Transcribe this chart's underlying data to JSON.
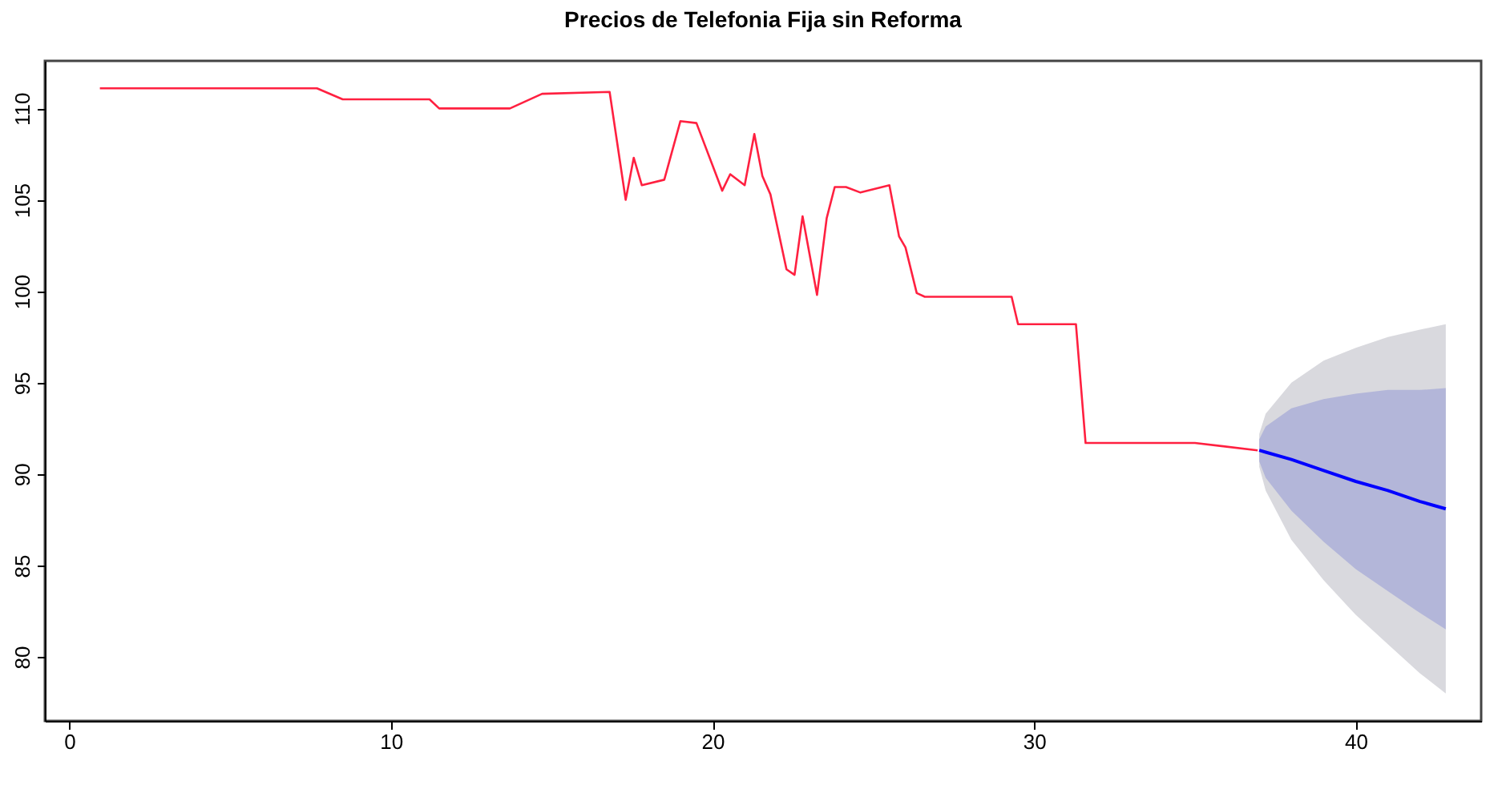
{
  "chart_data": {
    "type": "line",
    "title": "Precios de Telefonia Fija sin Reforma",
    "xlim": [
      -0.76,
      43.9
    ],
    "ylim": [
      76.5,
      112.6
    ],
    "xticks": [
      0,
      10,
      20,
      30,
      40
    ],
    "yticks": [
      80,
      85,
      90,
      95,
      100,
      105,
      110
    ],
    "grid": false,
    "line_style": "solid",
    "marker": "none",
    "series": [
      {
        "color": "#ff2040",
        "x": [
          0.95,
          7.7,
          8.5,
          11.2,
          11.5,
          13.7,
          14.7,
          16.8,
          17.3,
          17.55,
          17.8,
          18.5,
          19.0,
          19.5,
          20.3,
          20.55,
          21.0,
          21.3,
          21.55,
          21.8,
          22.3,
          22.55,
          22.8,
          23.25,
          23.55,
          23.8,
          24.15,
          24.6,
          25.5,
          25.8,
          26.0,
          26.35,
          26.6,
          29.3,
          29.5,
          31.3,
          31.6,
          35.0,
          36.95
        ],
        "values": [
          111.1,
          111.1,
          110.5,
          110.5,
          110.0,
          110.0,
          110.8,
          110.9,
          105.0,
          107.3,
          105.8,
          106.1,
          109.3,
          109.2,
          105.5,
          106.4,
          105.8,
          108.6,
          106.3,
          105.3,
          101.2,
          100.9,
          104.1,
          99.8,
          104.0,
          105.7,
          105.7,
          105.4,
          105.8,
          103.0,
          102.4,
          99.9,
          99.7,
          99.7,
          98.2,
          98.2,
          91.7,
          91.7,
          91.3
        ]
      },
      {
        "color": "#d9d9de",
        "x": [
          37.0,
          37.2,
          38,
          39,
          40,
          41,
          42,
          42.8
        ],
        "values": [
          null,
          null,
          null,
          null,
          null,
          null,
          null,
          null
        ],
        "lower": [
          90.4,
          89.1,
          86.4,
          84.2,
          82.3,
          80.7,
          79.1,
          78.0
        ],
        "upper": [
          92.2,
          93.3,
          95.0,
          96.2,
          96.9,
          97.5,
          97.9,
          98.2
        ]
      },
      {
        "color": "#b3b6d9",
        "x": [
          37.0,
          37.2,
          38,
          39,
          40,
          41,
          42,
          42.8
        ],
        "values": [
          null,
          null,
          null,
          null,
          null,
          null,
          null,
          null
        ],
        "lower": [
          90.7,
          89.8,
          88.0,
          86.3,
          84.8,
          83.6,
          82.4,
          81.5
        ],
        "upper": [
          91.9,
          92.6,
          93.6,
          94.1,
          94.4,
          94.6,
          94.6,
          94.7
        ]
      },
      {
        "color": "#0000ff",
        "x": [
          37.0,
          37.2,
          38,
          39,
          40,
          41,
          42,
          42.8
        ],
        "values": [
          91.3,
          91.2,
          90.8,
          90.2,
          89.6,
          89.1,
          88.5,
          88.1
        ]
      }
    ]
  }
}
